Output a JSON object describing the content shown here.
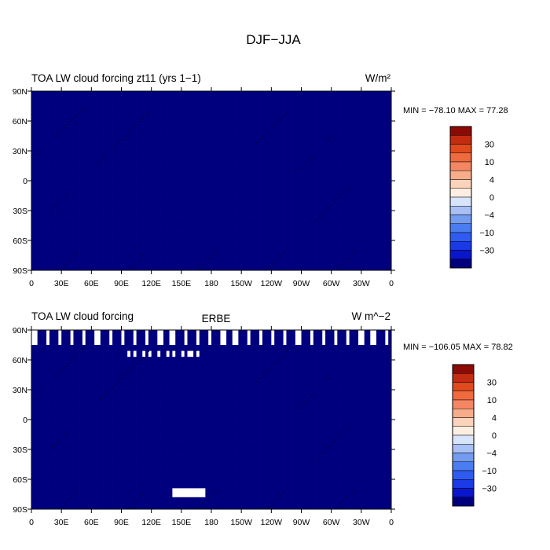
{
  "figure": {
    "title": "DJF−JJA"
  },
  "colors": {
    "palette": [
      "#00007f",
      "#0a16cc",
      "#1a3ae6",
      "#2f5bf0",
      "#4b7df2",
      "#739bf0",
      "#a8c0f4",
      "#d7e4fa",
      "#fdeee2",
      "#fbd2ba",
      "#f7ad8a",
      "#f58663",
      "#f06a3f",
      "#e04a1e",
      "#c32c10",
      "#8c0a05"
    ],
    "land": "#000000",
    "missing": "#ffffff"
  },
  "chart_data": [
    {
      "type": "heatmap",
      "title": "TOA LW cloud forcing zt11 (yrs 1−1)",
      "center_title": "",
      "units": "W/m²",
      "stats": "MIN = −78.10 MAX =  77.28",
      "min": -78.1,
      "max": 77.28,
      "xlim": [
        0,
        360
      ],
      "ylim": [
        -90,
        90
      ],
      "xtick_labels": [
        "0",
        "30E",
        "60E",
        "90E",
        "120E",
        "150E",
        "180",
        "150W",
        "120W",
        "90W",
        "60W",
        "30W",
        "0"
      ],
      "ytick_labels": [
        "90N",
        "60N",
        "30N",
        "0",
        "30S",
        "60S",
        "90S"
      ],
      "colorbar_levels": [
        -50,
        -40,
        -30,
        -20,
        -15,
        -10,
        -8,
        -6,
        -4,
        -2,
        0,
        2,
        4,
        6,
        8,
        10,
        15,
        20,
        30,
        40,
        50
      ],
      "colorbar_labels": [
        "30",
        "10",
        "4",
        "0",
        "−4",
        "−10",
        "−30"
      ],
      "has_missing": false
    },
    {
      "type": "heatmap",
      "title": "TOA LW cloud forcing",
      "center_title": "ERBE",
      "units": "W m^−2",
      "stats": "MIN = −106.05 MAX =  78.82",
      "min": -106.05,
      "max": 78.82,
      "xlim": [
        0,
        360
      ],
      "ylim": [
        -90,
        90
      ],
      "xtick_labels": [
        "0",
        "30E",
        "60E",
        "90E",
        "120E",
        "150E",
        "180",
        "150W",
        "120W",
        "90W",
        "60W",
        "30W",
        "0"
      ],
      "ytick_labels": [
        "90N",
        "60N",
        "30N",
        "0",
        "30S",
        "60S",
        "90S"
      ],
      "colorbar_levels": [
        -50,
        -40,
        -30,
        -20,
        -15,
        -10,
        -8,
        -6,
        -4,
        -2,
        0,
        2,
        4,
        6,
        8,
        10,
        15,
        20,
        30,
        40,
        50
      ],
      "colorbar_labels": [
        "30",
        "10",
        "4",
        "0",
        "−4",
        "−10",
        "−30"
      ],
      "has_missing": true
    }
  ]
}
